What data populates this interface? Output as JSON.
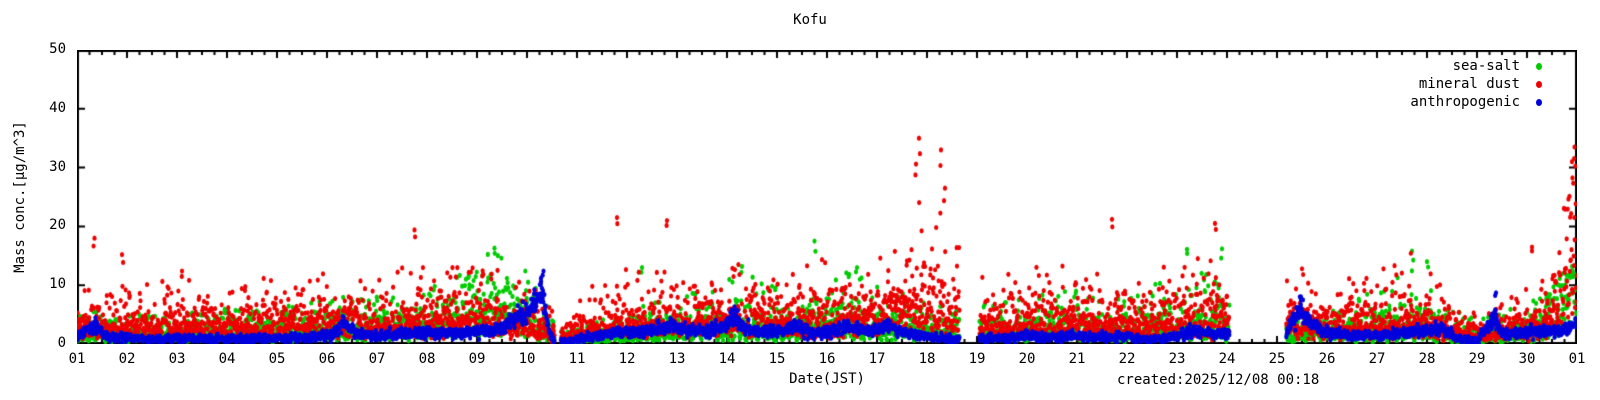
{
  "chart": {
    "title": "Kofu",
    "xlabel": "Date(JST)",
    "ylabel": "Mass conc.[μg/m^3]",
    "created": "created:2025/12/08 00:18"
  },
  "chart_data": {
    "type": "scatter",
    "title": "Kofu",
    "xlabel": "Date(JST)",
    "ylabel": "Mass conc.[μg/m^3]",
    "x_unit": "day of month (JST)",
    "xlim": [
      1,
      31
    ],
    "ylim": [
      0,
      50
    ],
    "x_ticks": [
      "01",
      "02",
      "03",
      "04",
      "05",
      "06",
      "07",
      "08",
      "09",
      "10",
      "11",
      "12",
      "13",
      "14",
      "15",
      "16",
      "17",
      "18",
      "19",
      "20",
      "21",
      "22",
      "23",
      "24",
      "25",
      "26",
      "27",
      "28",
      "29",
      "30",
      "01"
    ],
    "y_ticks": [
      0,
      10,
      20,
      30,
      40,
      50
    ],
    "x_minor_tick_interval": 0.25,
    "grid": false,
    "legend_position": "top-right-inside",
    "sampling_interval_days": 0.00694,
    "data_gaps_days": [
      [
        10.55,
        10.68
      ],
      [
        18.65,
        19.05
      ],
      [
        24.05,
        25.18
      ]
    ],
    "series": [
      {
        "name": "sea-salt",
        "color": "#00cc00",
        "style": "dots",
        "sigma": 0.6,
        "outlier_prob": 0.03,
        "band": false,
        "profile_day_base_peak": [
          [
            1,
            2.2,
            6
          ],
          [
            2,
            1.8,
            5
          ],
          [
            3,
            1.8,
            5
          ],
          [
            4,
            1.8,
            6
          ],
          [
            5,
            2.2,
            6
          ],
          [
            6,
            2.5,
            8
          ],
          [
            7,
            2.2,
            8
          ],
          [
            8,
            3,
            9
          ],
          [
            8.7,
            4.5,
            13
          ],
          [
            9.3,
            5,
            16
          ],
          [
            9.9,
            4,
            14
          ],
          [
            10.3,
            2.5,
            8
          ],
          [
            10.7,
            0.6,
            2
          ],
          [
            11.2,
            1,
            3
          ],
          [
            12,
            1.8,
            6
          ],
          [
            12.5,
            2.2,
            10
          ],
          [
            13,
            2.2,
            8
          ],
          [
            13.5,
            2.5,
            10
          ],
          [
            14.3,
            3,
            13
          ],
          [
            15,
            2.8,
            10
          ],
          [
            15.8,
            3,
            12
          ],
          [
            16.5,
            3.5,
            13
          ],
          [
            17,
            3,
            10
          ],
          [
            17.8,
            2.5,
            8
          ],
          [
            18.5,
            2,
            6
          ],
          [
            19.3,
            2,
            7
          ],
          [
            20,
            2.2,
            8
          ],
          [
            20.8,
            2.8,
            10
          ],
          [
            21.5,
            2.2,
            8
          ],
          [
            22,
            2.2,
            8
          ],
          [
            23.2,
            3.2,
            14
          ],
          [
            24,
            3.5,
            10
          ],
          [
            25.3,
            1.8,
            6
          ],
          [
            26,
            1.8,
            7
          ],
          [
            27,
            2.2,
            10
          ],
          [
            27.7,
            2.8,
            15
          ],
          [
            28.3,
            2,
            7
          ],
          [
            29,
            1.2,
            4
          ],
          [
            29.8,
            1.8,
            7
          ],
          [
            30.3,
            2.5,
            8
          ],
          [
            30.7,
            6,
            12
          ],
          [
            31,
            8,
            13
          ]
        ],
        "notable_points": [
          [
            9.35,
            16.3
          ],
          [
            12.3,
            13
          ],
          [
            14.3,
            13.2
          ],
          [
            15.75,
            17.5
          ],
          [
            16.6,
            13
          ],
          [
            23.2,
            16.1
          ],
          [
            23.9,
            16.2
          ],
          [
            27.7,
            15.8
          ],
          [
            28.0,
            14
          ],
          [
            30.9,
            13.2
          ]
        ]
      },
      {
        "name": "mineral dust",
        "color": "#ee0000",
        "style": "dots",
        "sigma": 0.55,
        "outlier_prob": 0.045,
        "band": false,
        "profile_day_base_peak": [
          [
            1,
            3,
            10
          ],
          [
            1.5,
            3,
            9
          ],
          [
            2,
            3,
            10
          ],
          [
            3,
            3.2,
            12
          ],
          [
            4,
            2.8,
            9
          ],
          [
            5,
            3.2,
            12
          ],
          [
            6,
            3.5,
            12
          ],
          [
            7,
            3.2,
            11
          ],
          [
            7.8,
            3.8,
            15
          ],
          [
            8.5,
            4,
            13
          ],
          [
            9.3,
            4,
            13
          ],
          [
            10,
            3.5,
            12
          ],
          [
            10.7,
            1.2,
            4
          ],
          [
            11.2,
            2.5,
            9
          ],
          [
            11.8,
            3.5,
            14
          ],
          [
            12.4,
            3.2,
            12
          ],
          [
            12.9,
            3.5,
            15
          ],
          [
            13.5,
            3.5,
            12
          ],
          [
            14,
            3.8,
            14
          ],
          [
            15,
            3.8,
            13
          ],
          [
            15.8,
            4,
            16
          ],
          [
            16.5,
            4.2,
            14
          ],
          [
            17,
            4.5,
            16
          ],
          [
            17.6,
            5.5,
            22
          ],
          [
            17.9,
            6.5,
            26
          ],
          [
            18.3,
            5.5,
            24
          ],
          [
            18.6,
            5,
            20
          ],
          [
            19.2,
            3.2,
            11
          ],
          [
            19.9,
            3.5,
            15
          ],
          [
            20.5,
            3.5,
            14
          ],
          [
            21,
            3.5,
            13
          ],
          [
            21.7,
            3.8,
            15
          ],
          [
            22.3,
            3.2,
            11
          ],
          [
            23,
            3.8,
            15
          ],
          [
            23.8,
            4,
            16
          ],
          [
            25.3,
            3.8,
            13
          ],
          [
            26,
            2.8,
            10
          ],
          [
            27,
            3.2,
            13
          ],
          [
            27.7,
            3.8,
            16
          ],
          [
            28.2,
            3,
            12
          ],
          [
            28.7,
            1.8,
            5
          ],
          [
            29.3,
            1.8,
            6
          ],
          [
            29.9,
            2.8,
            10
          ],
          [
            30.3,
            3,
            14
          ],
          [
            30.7,
            7,
            22
          ],
          [
            30.95,
            14,
            32
          ],
          [
            31,
            11,
            27
          ]
        ],
        "notable_points": [
          [
            1.35,
            18
          ],
          [
            1.9,
            15.2
          ],
          [
            3.1,
            12.4
          ],
          [
            7.75,
            19.4
          ],
          [
            11.8,
            21.5
          ],
          [
            12.8,
            21
          ],
          [
            17.78,
            30.6
          ],
          [
            17.84,
            35
          ],
          [
            18.28,
            33
          ],
          [
            18.36,
            26.5
          ],
          [
            21.7,
            21.2
          ],
          [
            23.76,
            20.5
          ],
          [
            25.5,
            12.8
          ],
          [
            30.1,
            16.5
          ],
          [
            30.9,
            31
          ],
          [
            30.95,
            33.5
          ]
        ]
      },
      {
        "name": "anthropogenic",
        "color": "#0000dd",
        "style": "dots",
        "sigma": 0.3,
        "outlier_prob": 0,
        "band": true,
        "profile_day_base_peak": [
          [
            1,
            1.2,
            2.5
          ],
          [
            1.3,
            3.2,
            5
          ],
          [
            1.6,
            1.4,
            2.5
          ],
          [
            2,
            1,
            2
          ],
          [
            2.5,
            0.8,
            1.8
          ],
          [
            3,
            1,
            2
          ],
          [
            3.5,
            0.8,
            1.8
          ],
          [
            4,
            0.8,
            1.8
          ],
          [
            4.5,
            0.9,
            1.9
          ],
          [
            5,
            1,
            2
          ],
          [
            5.7,
            1.2,
            2.2
          ],
          [
            6.1,
            1.6,
            3
          ],
          [
            6.35,
            3.6,
            5.2
          ],
          [
            6.6,
            1.6,
            3
          ],
          [
            7,
            1.5,
            2.8
          ],
          [
            7.5,
            1.7,
            3
          ],
          [
            8,
            1.9,
            3.2
          ],
          [
            8.5,
            1.9,
            3.2
          ],
          [
            9,
            2.1,
            3.5
          ],
          [
            9.5,
            2.6,
            4.2
          ],
          [
            9.8,
            4.5,
            7
          ],
          [
            10.05,
            6,
            9
          ],
          [
            10.3,
            8.5,
            12
          ],
          [
            10.45,
            2,
            4
          ],
          [
            10.55,
            0.5,
            1
          ],
          [
            10.8,
            0.4,
            0.9
          ],
          [
            11,
            0.8,
            1.6
          ],
          [
            11.5,
            1.6,
            2.8
          ],
          [
            12,
            2,
            3.3
          ],
          [
            12.5,
            2.3,
            3.6
          ],
          [
            12.9,
            3.3,
            5
          ],
          [
            13.2,
            2.3,
            3.6
          ],
          [
            13.6,
            2,
            3.3
          ],
          [
            13.95,
            3.2,
            4.8
          ],
          [
            14.15,
            4.6,
            6.5
          ],
          [
            14.4,
            2.4,
            3.8
          ],
          [
            15,
            2,
            3.3
          ],
          [
            15.35,
            2.9,
            4.4
          ],
          [
            15.7,
            1.9,
            3.2
          ],
          [
            16,
            2,
            3.3
          ],
          [
            16.4,
            3.2,
            4.8
          ],
          [
            16.8,
            2.1,
            3.4
          ],
          [
            17.2,
            3,
            4.6
          ],
          [
            17.6,
            1.8,
            3
          ],
          [
            18,
            1.2,
            2.2
          ],
          [
            18.6,
            0.8,
            1.6
          ],
          [
            19.2,
            0.9,
            1.7
          ],
          [
            19.6,
            1.1,
            2
          ],
          [
            20,
            1.4,
            2.5
          ],
          [
            20.5,
            1.1,
            2
          ],
          [
            21,
            1.4,
            2.5
          ],
          [
            21.5,
            1.1,
            2
          ],
          [
            22,
            1.4,
            2.5
          ],
          [
            22.4,
            0.7,
            1.5
          ],
          [
            23,
            1.4,
            2.5
          ],
          [
            23.35,
            2.4,
            3.8
          ],
          [
            23.7,
            1.7,
            2.9
          ],
          [
            24,
            1.9,
            3.1
          ],
          [
            25.2,
            2,
            3.3
          ],
          [
            25.45,
            5.8,
            8
          ],
          [
            25.65,
            3.8,
            5.6
          ],
          [
            25.9,
            2,
            3.3
          ],
          [
            26.3,
            1.6,
            2.8
          ],
          [
            27,
            1.4,
            2.5
          ],
          [
            27.6,
            2,
            3.3
          ],
          [
            28,
            2.2,
            3.5
          ],
          [
            28.3,
            2.8,
            4.4
          ],
          [
            28.6,
            0.9,
            1.7
          ],
          [
            29,
            0.6,
            1.3
          ],
          [
            29.35,
            4.5,
            7
          ],
          [
            29.5,
            1.8,
            3
          ],
          [
            30,
            2,
            3.3
          ],
          [
            30.4,
            2.3,
            3.6
          ],
          [
            30.7,
            2.2,
            3.5
          ],
          [
            31,
            3.2,
            5
          ]
        ],
        "notable_points": [
          [
            10.28,
            11.2
          ],
          [
            10.33,
            12.4
          ],
          [
            14.15,
            6.3
          ],
          [
            25.48,
            8
          ],
          [
            29.38,
            8.7
          ]
        ]
      }
    ]
  }
}
